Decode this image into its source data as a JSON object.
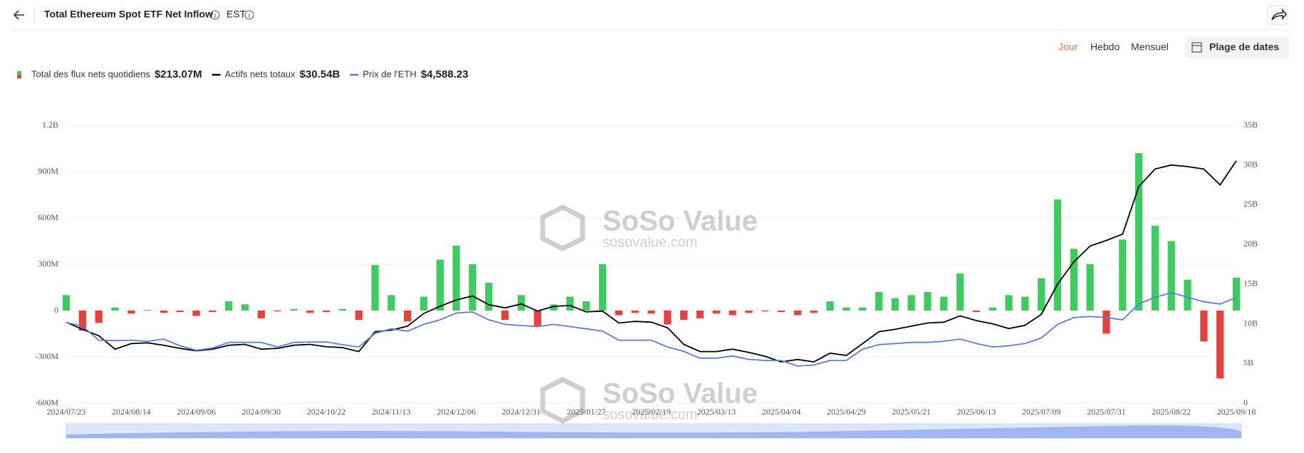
{
  "header": {
    "title": "Total Ethereum Spot ETF Net Inflow",
    "timezone": "EST",
    "periods": [
      "Jour",
      "Hebdo",
      "Mensuel"
    ],
    "date_range": "Plage de dates"
  },
  "watermark": {
    "brand": "SoSo Value",
    "url": "sosovalue.com"
  },
  "chart_data": {
    "type": "bar-line",
    "categories": [
      "2024/07/23",
      null,
      null,
      null,
      "2024/08/14",
      null,
      null,
      null,
      "2024/09/06",
      null,
      null,
      null,
      "2024/09/30",
      null,
      null,
      null,
      "2024/10/22",
      null,
      null,
      null,
      "2024/11/13",
      null,
      null,
      null,
      "2024/12/06",
      null,
      null,
      null,
      "2024/12/31",
      null,
      null,
      null,
      "2025/01/27",
      null,
      null,
      null,
      "2025/02/19",
      null,
      null,
      null,
      "2025/03/13",
      null,
      null,
      null,
      "2025/04/04",
      null,
      null,
      null,
      "2025/04/29",
      null,
      null,
      null,
      "2025/05/21",
      null,
      null,
      null,
      "2025/06/13",
      null,
      null,
      null,
      "2025/07/09",
      null,
      null,
      null,
      "2025/07/31",
      null,
      null,
      null,
      "2025/08/22",
      null,
      null,
      null,
      "2025/09/18"
    ],
    "series": [
      {
        "name": "Total des flux nets quotidiens",
        "legend_value": "$213.07M",
        "color": "#3ecb5f",
        "negative_color": "#e8413d",
        "axis": "y",
        "values": [
          100,
          -130,
          -80,
          20,
          -20,
          5,
          -15,
          -10,
          -35,
          -10,
          60,
          40,
          -50,
          -5,
          10,
          -15,
          -10,
          10,
          -60,
          295,
          100,
          -70,
          90,
          330,
          420,
          300,
          180,
          -60,
          100,
          -100,
          40,
          90,
          60,
          300,
          -30,
          -15,
          -20,
          -90,
          -60,
          -50,
          -20,
          -30,
          -15,
          -5,
          -10,
          -30,
          -15,
          60,
          20,
          20,
          120,
          80,
          100,
          120,
          90,
          240,
          -10,
          20,
          100,
          90,
          210,
          720,
          400,
          300,
          -150,
          460,
          1020,
          550,
          450,
          200,
          -200,
          -440,
          213.07
        ]
      },
      {
        "name": "Actifs nets totaux",
        "legend_value": "$30.54B",
        "color": "#000000",
        "axis": "y2",
        "values": [
          10.2,
          9.3,
          8.5,
          6.8,
          7.5,
          7.6,
          7.3,
          6.9,
          6.6,
          6.8,
          7.3,
          7.4,
          6.8,
          6.9,
          7.3,
          7.4,
          7.1,
          7.0,
          6.5,
          9.0,
          9.2,
          9.7,
          11.3,
          12.2,
          13.0,
          13.5,
          12.4,
          12.0,
          12.5,
          11.6,
          12.2,
          12.3,
          11.5,
          11.6,
          10.1,
          10.3,
          10.2,
          9.5,
          7.4,
          6.5,
          6.5,
          6.8,
          6.4,
          5.9,
          5.2,
          5.5,
          5.2,
          6.3,
          6.0,
          7.5,
          9.0,
          9.3,
          9.7,
          10.1,
          10.2,
          11.0,
          10.4,
          10.0,
          9.4,
          9.8,
          11.2,
          15.0,
          17.8,
          19.8,
          20.5,
          21.3,
          27.3,
          29.5,
          30.0,
          29.8,
          29.5,
          27.5,
          30.54
        ]
      },
      {
        "name": "Prix de l'ETH",
        "legend_value": "$4,588.23",
        "color": "#5b7be0",
        "axis": "price",
        "values": [
          3480,
          3320,
          2700,
          2680,
          2700,
          2650,
          2750,
          2450,
          2250,
          2350,
          2600,
          2600,
          2600,
          2400,
          2600,
          2620,
          2620,
          2500,
          2400,
          3000,
          3200,
          3100,
          3400,
          3600,
          3900,
          3950,
          3600,
          3400,
          3350,
          3300,
          3400,
          3300,
          3200,
          3100,
          2700,
          2700,
          2700,
          2400,
          2200,
          1900,
          1900,
          2000,
          1850,
          1800,
          1800,
          1550,
          1600,
          1800,
          1800,
          2300,
          2500,
          2550,
          2600,
          2600,
          2650,
          2750,
          2550,
          2400,
          2450,
          2550,
          2800,
          3400,
          3700,
          3750,
          3700,
          3600,
          4300,
          4600,
          4800,
          4600,
          4400,
          4300,
          4588.23
        ]
      }
    ],
    "ylim": [
      -600,
      1200
    ],
    "yticks": [
      {
        "value": -600,
        "label": "-600M"
      },
      {
        "value": -300,
        "label": "-300M"
      },
      0,
      {
        "value": 300,
        "label": "300M"
      },
      {
        "value": 600,
        "label": "600M"
      },
      {
        "value": 900,
        "label": "900M"
      },
      {
        "value": 1200,
        "label": "1.2B"
      }
    ],
    "y2lim": [
      0,
      35
    ],
    "y2ticks": [
      0,
      {
        "value": 5,
        "label": "5B"
      },
      {
        "value": 10,
        "label": "10B"
      },
      {
        "value": 15,
        "label": "15B"
      },
      {
        "value": 20,
        "label": "20B"
      },
      {
        "value": 25,
        "label": "25B"
      },
      {
        "value": 30,
        "label": "30B"
      },
      {
        "value": 35,
        "label": "35B"
      }
    ],
    "grid": true
  }
}
